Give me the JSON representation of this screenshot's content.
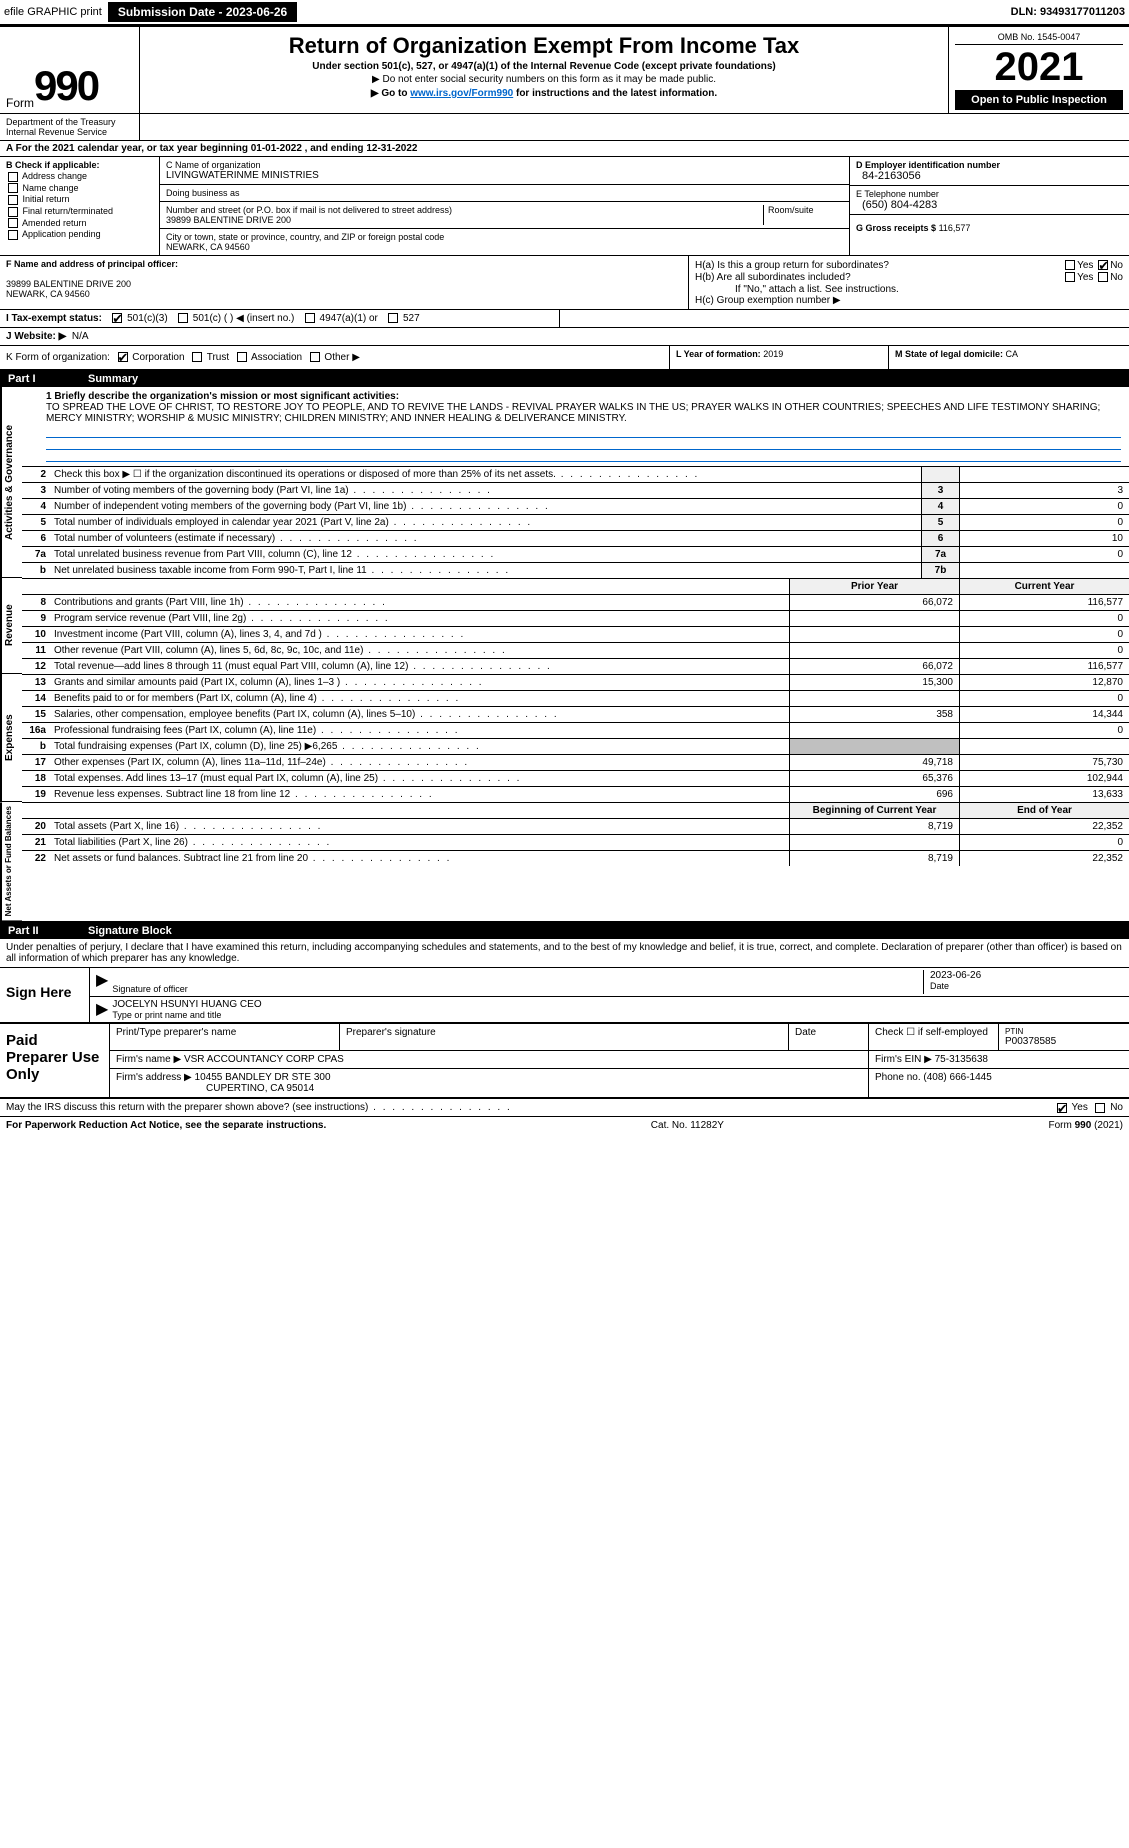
{
  "topbar": {
    "efile_label": "efile GRAPHIC print",
    "sub_label": "Submission Date - 2023-06-26",
    "dln": "DLN: 93493177011203"
  },
  "header": {
    "form_prefix": "Form",
    "form_number": "990",
    "title": "Return of Organization Exempt From Income Tax",
    "subtitle": "Under section 501(c), 527, or 4947(a)(1) of the Internal Revenue Code (except private foundations)",
    "note1": "▶ Do not enter social security numbers on this form as it may be made public.",
    "note2_pre": "▶ Go to ",
    "note2_link": "www.irs.gov/Form990",
    "note2_post": " for instructions and the latest information.",
    "omb": "OMB No. 1545-0047",
    "year": "2021",
    "open_public": "Open to Public Inspection",
    "dept": "Department of the Treasury Internal Revenue Service"
  },
  "row_a": "A For the 2021 calendar year, or tax year beginning 01-01-2022   , and ending 12-31-2022",
  "col_b": {
    "label": "B Check if applicable:",
    "items": [
      "Address change",
      "Name change",
      "Initial return",
      "Final return/terminated",
      "Amended return",
      "Application pending"
    ]
  },
  "col_c": {
    "name_label": "C Name of organization",
    "name": "LIVINGWATERINME MINISTRIES",
    "dba_label": "Doing business as",
    "dba": "",
    "addr_label": "Number and street (or P.O. box if mail is not delivered to street address)",
    "room_label": "Room/suite",
    "addr": "39899 BALENTINE DRIVE 200",
    "city_label": "City or town, state or province, country, and ZIP or foreign postal code",
    "city": "NEWARK, CA  94560"
  },
  "col_d": {
    "label": "D Employer identification number",
    "val": "84-2163056"
  },
  "col_e": {
    "label": "E Telephone number",
    "val": "(650) 804-4283"
  },
  "col_g": {
    "label": "G Gross receipts $",
    "val": "116,577"
  },
  "col_f": {
    "label": "F Name and address of principal officer:",
    "line1": "39899 BALENTINE DRIVE 200",
    "line2": "NEWARK, CA  94560"
  },
  "col_h": {
    "a_label": "H(a)  Is this a group return for subordinates?",
    "a_yes": "Yes",
    "a_no": "No",
    "b_label": "H(b)  Are all subordinates included?",
    "b_yes": "Yes",
    "b_no": "No",
    "b_note": "If \"No,\" attach a list. See instructions.",
    "c_label": "H(c)  Group exemption number ▶"
  },
  "row_i": {
    "label": "I  Tax-exempt status:",
    "o1": "501(c)(3)",
    "o2": "501(c) (  ) ◀ (insert no.)",
    "o3": "4947(a)(1) or",
    "o4": "527"
  },
  "row_j": {
    "label": "J  Website: ▶",
    "val": "N/A"
  },
  "row_k": {
    "label": "K Form of organization:",
    "o1": "Corporation",
    "o2": "Trust",
    "o3": "Association",
    "o4": "Other ▶"
  },
  "row_l": {
    "label": "L Year of formation:",
    "val": "2019"
  },
  "row_m": {
    "label": "M State of legal domicile:",
    "val": "CA"
  },
  "part1": {
    "num": "Part I",
    "title": "Summary"
  },
  "mission": {
    "q": "1 Briefly describe the organization's mission or most significant activities:",
    "text": "TO SPREAD THE LOVE OF CHRIST, TO RESTORE JOY TO PEOPLE, AND TO REVIVE THE LANDS - REVIVAL PRAYER WALKS IN THE US; PRAYER WALKS IN OTHER COUNTRIES; SPEECHES AND LIFE TESTIMONY SHARING; MERCY MINISTRY; WORSHIP & MUSIC MINISTRY; CHILDREN MINISTRY; AND INNER HEALING & DELIVERANCE MINISTRY."
  },
  "sections": {
    "governance": "Activities & Governance",
    "revenue": "Revenue",
    "expenses": "Expenses",
    "netassets": "Net Assets or Fund Balances"
  },
  "gov_rows": [
    {
      "n": "2",
      "t": "Check this box ▶ ☐  if the organization discontinued its operations or disposed of more than 25% of its net assets.",
      "box": "",
      "v": ""
    },
    {
      "n": "3",
      "t": "Number of voting members of the governing body (Part VI, line 1a)",
      "box": "3",
      "v": "3"
    },
    {
      "n": "4",
      "t": "Number of independent voting members of the governing body (Part VI, line 1b)",
      "box": "4",
      "v": "0"
    },
    {
      "n": "5",
      "t": "Total number of individuals employed in calendar year 2021 (Part V, line 2a)",
      "box": "5",
      "v": "0"
    },
    {
      "n": "6",
      "t": "Total number of volunteers (estimate if necessary)",
      "box": "6",
      "v": "10"
    },
    {
      "n": "7a",
      "t": "Total unrelated business revenue from Part VIII, column (C), line 12",
      "box": "7a",
      "v": "0"
    },
    {
      "n": "b",
      "t": "Net unrelated business taxable income from Form 990-T, Part I, line 11",
      "box": "7b",
      "v": ""
    }
  ],
  "rev_hdr": {
    "prior": "Prior Year",
    "curr": "Current Year"
  },
  "rev_rows": [
    {
      "n": "8",
      "t": "Contributions and grants (Part VIII, line 1h)",
      "p": "66,072",
      "c": "116,577"
    },
    {
      "n": "9",
      "t": "Program service revenue (Part VIII, line 2g)",
      "p": "",
      "c": "0"
    },
    {
      "n": "10",
      "t": "Investment income (Part VIII, column (A), lines 3, 4, and 7d )",
      "p": "",
      "c": "0"
    },
    {
      "n": "11",
      "t": "Other revenue (Part VIII, column (A), lines 5, 6d, 8c, 9c, 10c, and 11e)",
      "p": "",
      "c": "0"
    },
    {
      "n": "12",
      "t": "Total revenue—add lines 8 through 11 (must equal Part VIII, column (A), line 12)",
      "p": "66,072",
      "c": "116,577"
    }
  ],
  "exp_rows": [
    {
      "n": "13",
      "t": "Grants and similar amounts paid (Part IX, column (A), lines 1–3 )",
      "p": "15,300",
      "c": "12,870"
    },
    {
      "n": "14",
      "t": "Benefits paid to or for members (Part IX, column (A), line 4)",
      "p": "",
      "c": "0"
    },
    {
      "n": "15",
      "t": "Salaries, other compensation, employee benefits (Part IX, column (A), lines 5–10)",
      "p": "358",
      "c": "14,344"
    },
    {
      "n": "16a",
      "t": "Professional fundraising fees (Part IX, column (A), line 11e)",
      "p": "",
      "c": "0"
    },
    {
      "n": "b",
      "t": "Total fundraising expenses (Part IX, column (D), line 25) ▶6,265",
      "p": "",
      "c": "",
      "shade": true
    },
    {
      "n": "17",
      "t": "Other expenses (Part IX, column (A), lines 11a–11d, 11f–24e)",
      "p": "49,718",
      "c": "75,730"
    },
    {
      "n": "18",
      "t": "Total expenses. Add lines 13–17 (must equal Part IX, column (A), line 25)",
      "p": "65,376",
      "c": "102,944"
    },
    {
      "n": "19",
      "t": "Revenue less expenses. Subtract line 18 from line 12",
      "p": "696",
      "c": "13,633"
    }
  ],
  "na_hdr": {
    "beg": "Beginning of Current Year",
    "end": "End of Year"
  },
  "na_rows": [
    {
      "n": "20",
      "t": "Total assets (Part X, line 16)",
      "p": "8,719",
      "c": "22,352"
    },
    {
      "n": "21",
      "t": "Total liabilities (Part X, line 26)",
      "p": "",
      "c": "0"
    },
    {
      "n": "22",
      "t": "Net assets or fund balances. Subtract line 21 from line 20",
      "p": "8,719",
      "c": "22,352"
    }
  ],
  "part2": {
    "num": "Part II",
    "title": "Signature Block"
  },
  "sig": {
    "jurat": "Under penalties of perjury, I declare that I have examined this return, including accompanying schedules and statements, and to the best of my knowledge and belief, it is true, correct, and complete. Declaration of preparer (other than officer) is based on all information of which preparer has any knowledge.",
    "sign_here": "Sign Here",
    "sig_officer": "Signature of officer",
    "date": "2023-06-26",
    "date_lbl": "Date",
    "name": "JOCELYN HSUNYI HUANG CEO",
    "name_lbl": "Type or print name and title"
  },
  "paid": {
    "label": "Paid Preparer Use Only",
    "h1": "Print/Type preparer's name",
    "h2": "Preparer's signature",
    "h3": "Date",
    "h4": "Check ☐ if self-employed",
    "h5_lbl": "PTIN",
    "h5": "P00378585",
    "firm_lbl": "Firm's name   ▶",
    "firm": "VSR ACCOUNTANCY CORP CPAS",
    "ein_lbl": "Firm's EIN ▶",
    "ein": "75-3135638",
    "addr_lbl": "Firm's address ▶",
    "addr1": "10455 BANDLEY DR STE 300",
    "addr2": "CUPERTINO, CA  95014",
    "phone_lbl": "Phone no.",
    "phone": "(408) 666-1445"
  },
  "discuss": {
    "q": "May the IRS discuss this return with the preparer shown above? (see instructions)",
    "yes": "Yes",
    "no": "No"
  },
  "footer": {
    "left": "For Paperwork Reduction Act Notice, see the separate instructions.",
    "mid": "Cat. No. 11282Y",
    "right": "Form 990 (2021)"
  }
}
